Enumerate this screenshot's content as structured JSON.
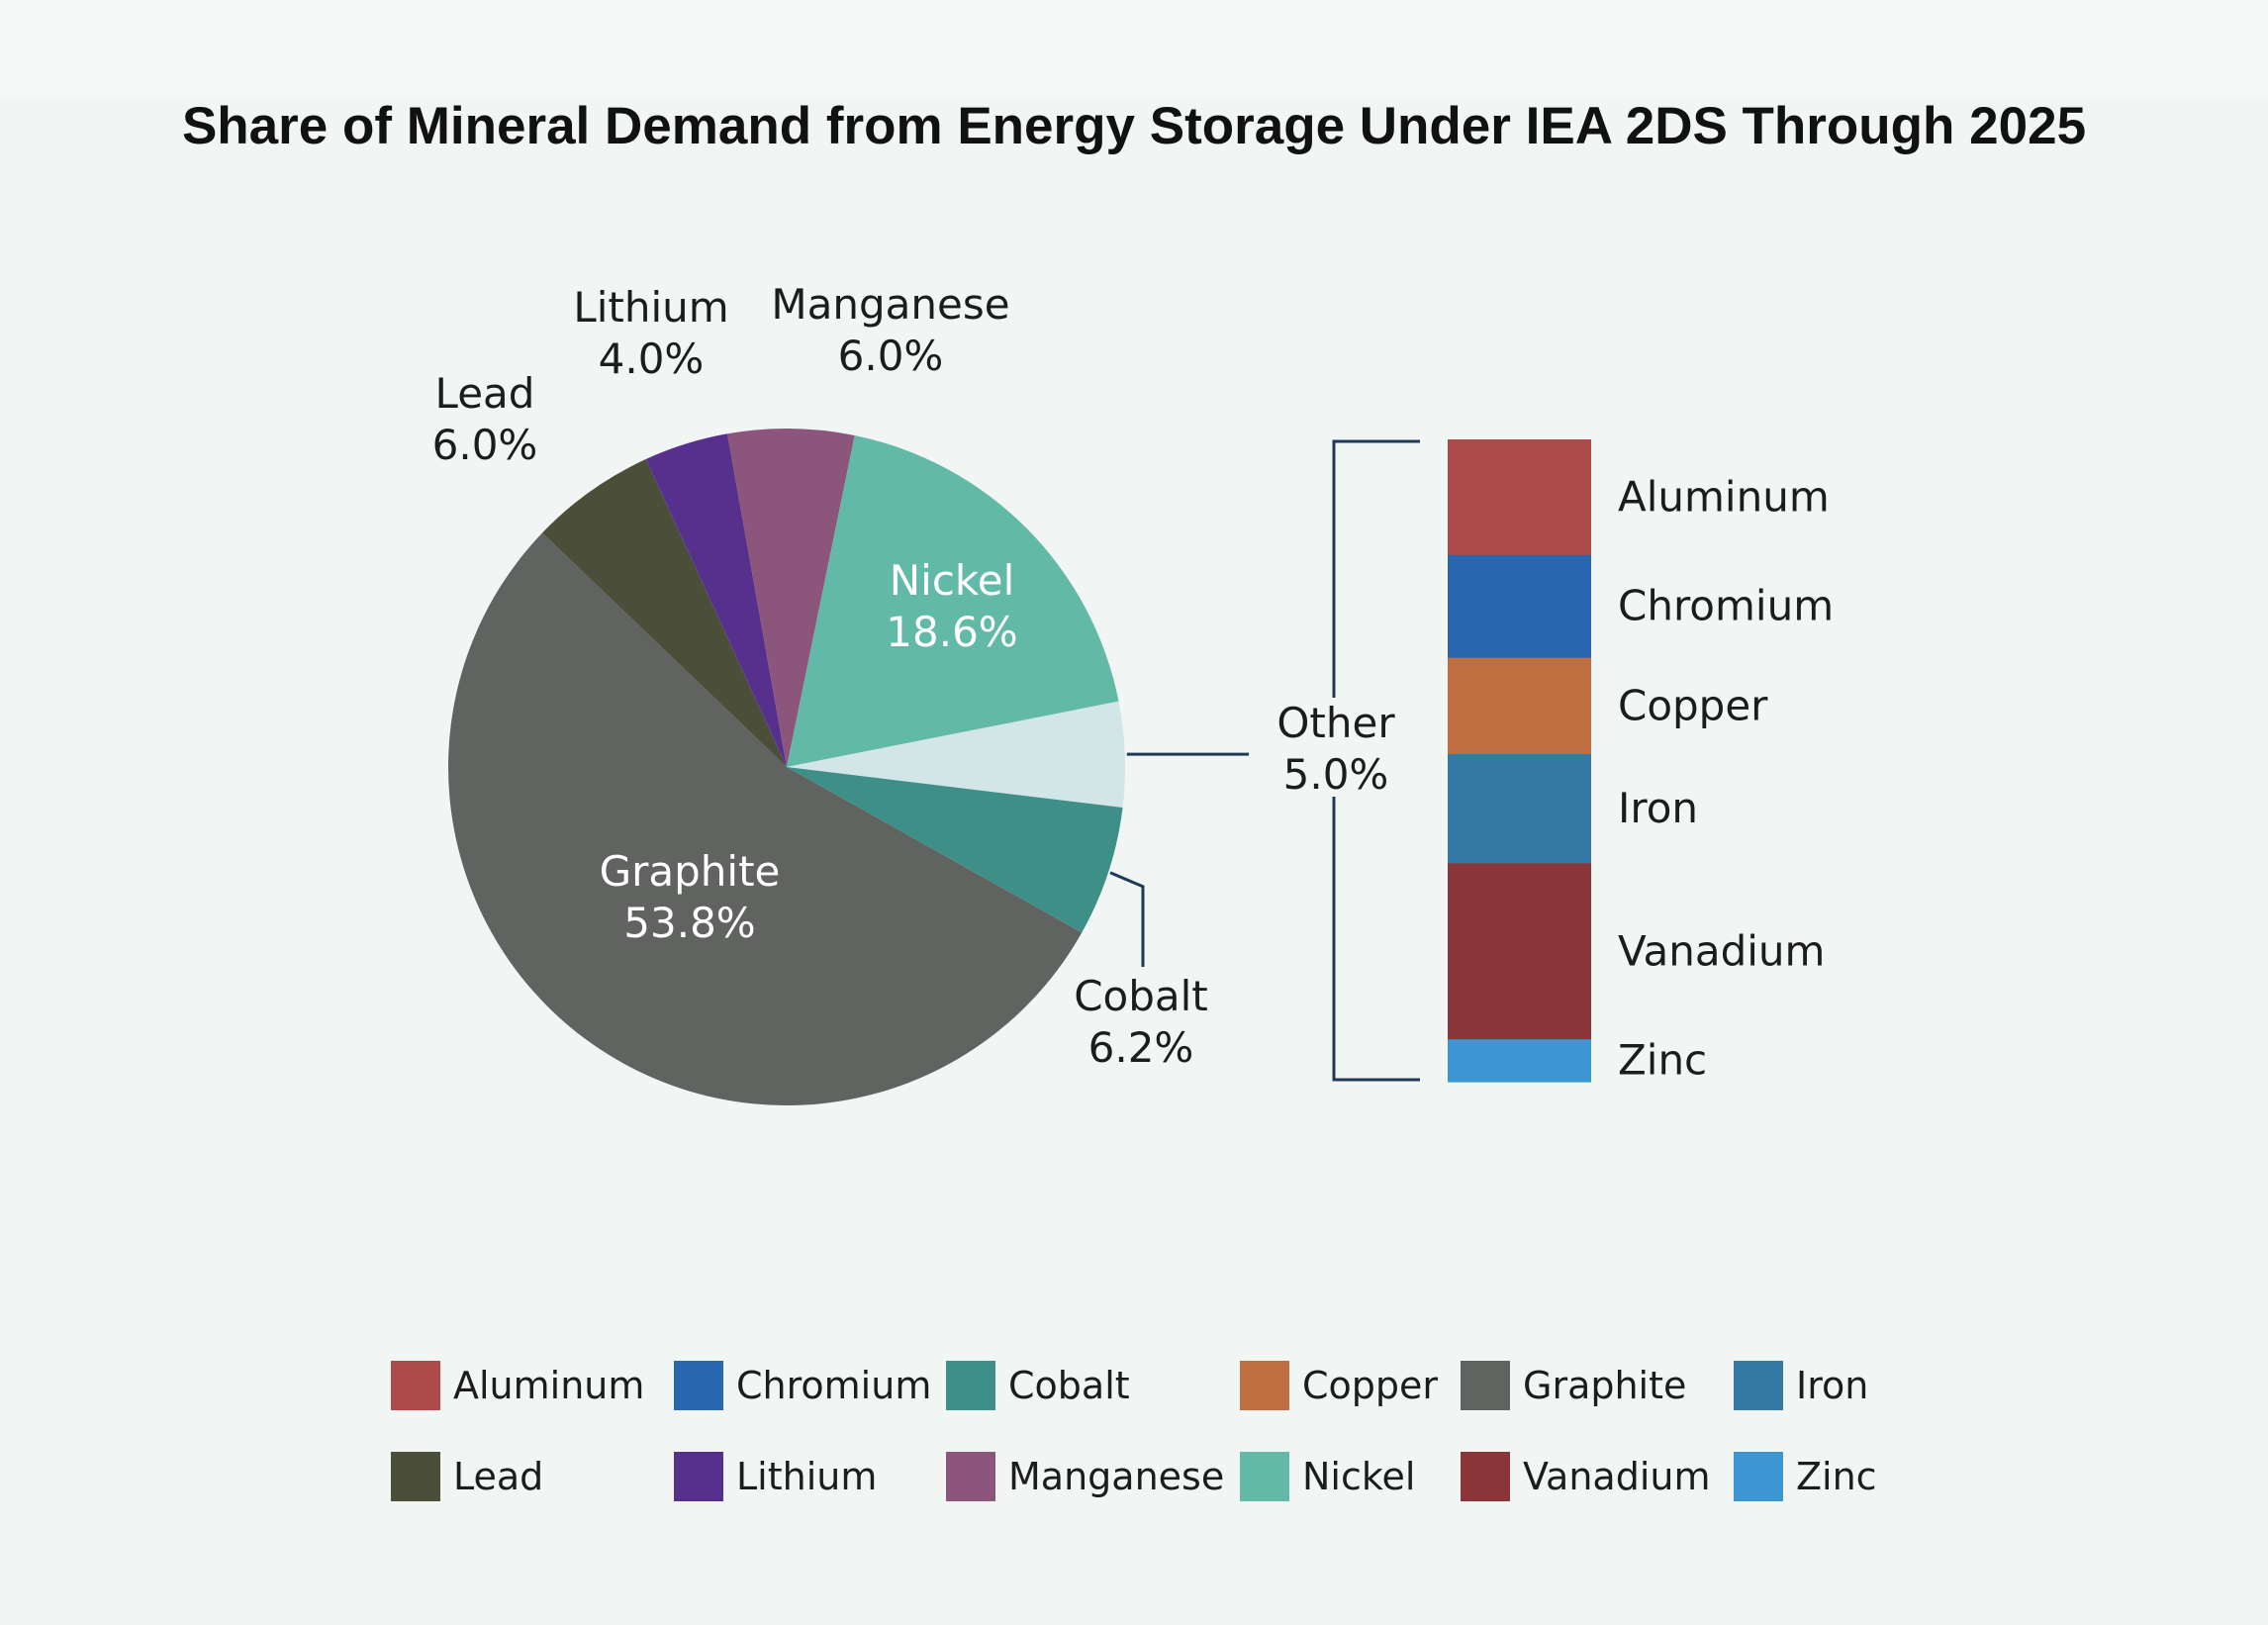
{
  "chart_data": {
    "type": "pie",
    "title": "Share of Mineral Demand from Energy Storage Under IEA 2DS Through 2025",
    "slices": [
      {
        "name": "Graphite",
        "value": 53.8,
        "label": "53.8%",
        "color": "#616361"
      },
      {
        "name": "Lead",
        "value": 6.0,
        "label": "6.0%",
        "color": "#4b4f3a"
      },
      {
        "name": "Lithium",
        "value": 4.0,
        "label": "4.0%",
        "color": "#57308e"
      },
      {
        "name": "Manganese",
        "value": 6.0,
        "label": "6.0%",
        "color": "#8c557c"
      },
      {
        "name": "Nickel",
        "value": 18.6,
        "label": "18.6%",
        "color": "#62b9a7"
      },
      {
        "name": "Other",
        "value": 5.0,
        "label": "5.0%",
        "color": "#d2e6e8"
      },
      {
        "name": "Cobalt",
        "value": 6.2,
        "label": "6.2%",
        "color": "#3e8f88"
      }
    ],
    "other_breakdown": {
      "name": "Other",
      "items": [
        {
          "name": "Aluminum",
          "value": 0.9,
          "color": "#ac4a49"
        },
        {
          "name": "Chromium",
          "value": 0.8,
          "color": "#2967b2"
        },
        {
          "name": "Copper",
          "value": 0.75,
          "color": "#bf6f42"
        },
        {
          "name": "Iron",
          "value": 0.85,
          "color": "#3579a6"
        },
        {
          "name": "Vanadium",
          "value": 1.37,
          "color": "#8a3639"
        },
        {
          "name": "Zinc",
          "value": 0.33,
          "color": "#3d95d4"
        }
      ]
    },
    "legend": [
      {
        "name": "Aluminum",
        "color": "#ac4a49"
      },
      {
        "name": "Chromium",
        "color": "#2967b2"
      },
      {
        "name": "Cobalt",
        "color": "#3e8f88"
      },
      {
        "name": "Copper",
        "color": "#bf6f42"
      },
      {
        "name": "Graphite",
        "color": "#616361"
      },
      {
        "name": "Iron",
        "color": "#3579a6"
      },
      {
        "name": "Lead",
        "color": "#4b4f3a"
      },
      {
        "name": "Lithium",
        "color": "#57308e"
      },
      {
        "name": "Manganese",
        "color": "#8c557c"
      },
      {
        "name": "Nickel",
        "color": "#62b9a7"
      },
      {
        "name": "Vanadium",
        "color": "#8a3639"
      },
      {
        "name": "Zinc",
        "color": "#3d95d4"
      }
    ],
    "legend_position": "bottom"
  }
}
